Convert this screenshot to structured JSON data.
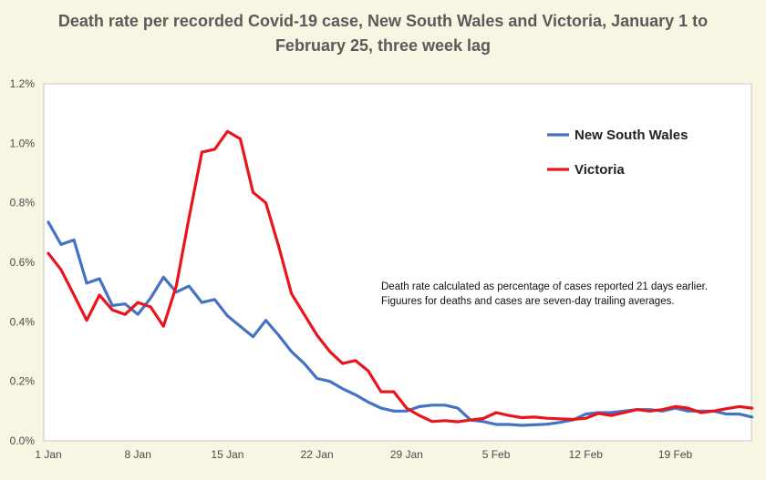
{
  "chart_data": {
    "type": "line",
    "title": "Death rate per recorded Covid-19 case, New South Wales and Victoria, January 1 to February 25, three week lag",
    "title_lines": [
      "Death rate per recorded Covid-19 case, New South Wales and Victoria, January 1 to",
      "February 25, three week lag"
    ],
    "xlabel": "",
    "ylabel": "",
    "x_tick_labels": [
      "1 Jan",
      "8 Jan",
      "15 Jan",
      "22 Jan",
      "29 Jan",
      "5 Feb",
      "12 Feb",
      "19 Feb"
    ],
    "y_tick_labels": [
      "0.0%",
      "0.2%",
      "0.4%",
      "0.6%",
      "0.8%",
      "1.0%",
      "1.2%"
    ],
    "ylim": [
      0,
      1.2
    ],
    "y_unit": "%",
    "grid": false,
    "legend_position": "top-right",
    "annotation": [
      "Death rate calculated as percentage of cases reported 21 days earlier.",
      "Figuures for deaths and cases are seven-day trailing averages."
    ],
    "series": [
      {
        "name": "New South Wales",
        "color": "#4472c4",
        "values": [
          0.735,
          0.66,
          0.675,
          0.53,
          0.545,
          0.455,
          0.46,
          0.425,
          0.48,
          0.55,
          0.5,
          0.52,
          0.465,
          0.475,
          0.42,
          0.385,
          0.35,
          0.405,
          0.355,
          0.3,
          0.26,
          0.21,
          0.2,
          0.175,
          0.155,
          0.13,
          0.11,
          0.1,
          0.1,
          0.115,
          0.12,
          0.12,
          0.11,
          0.07,
          0.065,
          0.055,
          0.055,
          0.052,
          0.054,
          0.056,
          0.062,
          0.07,
          0.09,
          0.095,
          0.095,
          0.1,
          0.105,
          0.105,
          0.1,
          0.11,
          0.1,
          0.1,
          0.1,
          0.09,
          0.09,
          0.08
        ]
      },
      {
        "name": "Victoria",
        "color": "#e8161c",
        "values": [
          0.63,
          0.575,
          0.49,
          0.405,
          0.49,
          0.44,
          0.425,
          0.465,
          0.45,
          0.385,
          0.52,
          0.75,
          0.97,
          0.98,
          1.04,
          1.015,
          0.835,
          0.8,
          0.655,
          0.495,
          0.425,
          0.355,
          0.3,
          0.26,
          0.27,
          0.235,
          0.165,
          0.165,
          0.11,
          0.085,
          0.065,
          0.068,
          0.064,
          0.07,
          0.075,
          0.095,
          0.085,
          0.078,
          0.08,
          0.076,
          0.074,
          0.072,
          0.076,
          0.092,
          0.085,
          0.095,
          0.105,
          0.1,
          0.105,
          0.115,
          0.11,
          0.095,
          0.1,
          0.108,
          0.115,
          0.11
        ]
      }
    ]
  },
  "colors": {
    "background": "#f8f6e3",
    "plot_area": "#ffffff",
    "axis": "#c8c8c8"
  }
}
